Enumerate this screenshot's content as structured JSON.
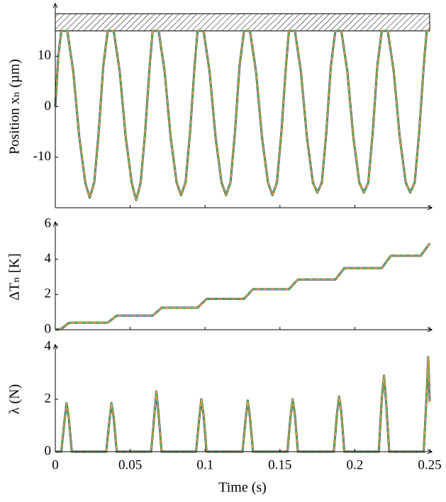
{
  "chart_data": [
    {
      "type": "line",
      "ylabel": "Position xₙ (µm)",
      "x": [
        0,
        0.002,
        0.004,
        0.008,
        0.012,
        0.016,
        0.02,
        0.023,
        0.026,
        0.029,
        0.032,
        0.035,
        0.039,
        0.043,
        0.047,
        0.051,
        0.054,
        0.057,
        0.06,
        0.063,
        0.065,
        0.069,
        0.073,
        0.077,
        0.081,
        0.084,
        0.087,
        0.09,
        0.093,
        0.095,
        0.099,
        0.103,
        0.107,
        0.111,
        0.114,
        0.117,
        0.12,
        0.123,
        0.126,
        0.13,
        0.134,
        0.138,
        0.142,
        0.145,
        0.148,
        0.151,
        0.154,
        0.156,
        0.16,
        0.164,
        0.168,
        0.172,
        0.175,
        0.178,
        0.181,
        0.184,
        0.187,
        0.191,
        0.195,
        0.199,
        0.203,
        0.206,
        0.209,
        0.212,
        0.215,
        0.218,
        0.222,
        0.226,
        0.23,
        0.234,
        0.237,
        0.24,
        0.243,
        0.246,
        0.248,
        0.25
      ],
      "values": [
        0,
        10,
        15,
        15,
        7,
        -6,
        -15,
        -18,
        -15,
        -5,
        8,
        15,
        15,
        7,
        -6,
        -15,
        -18.5,
        -15,
        -5,
        8,
        15,
        15,
        7,
        -6,
        -15,
        -17.5,
        -15,
        -5,
        8,
        15,
        15,
        7,
        -6,
        -15,
        -17.5,
        -15,
        -5,
        8,
        15,
        15,
        7,
        -6,
        -15,
        -17.5,
        -15,
        -5,
        8,
        15,
        15,
        7,
        -6,
        -15,
        -17,
        -15,
        -5,
        8,
        15,
        15,
        7,
        -6,
        -15,
        -17,
        -15,
        -5,
        8,
        15,
        15,
        7,
        -6,
        -15,
        -17,
        -15,
        -5,
        8,
        15,
        15
      ],
      "xlim": [
        0,
        0.25
      ],
      "ylim": [
        -20,
        20
      ],
      "yticks": [
        -10,
        0,
        10
      ],
      "xticks": [
        0,
        0.05,
        0.1,
        0.15,
        0.2,
        0.25
      ],
      "show_xtick_labels": false,
      "obstacle": [
        15,
        18.4
      ],
      "line_colors": [
        "#1b3f6e",
        "#5cb85c",
        "#f0a030"
      ]
    },
    {
      "type": "line",
      "ylabel": "ΔTₙ [K]",
      "x": [
        0,
        0.004,
        0.009,
        0.012,
        0.035,
        0.041,
        0.065,
        0.071,
        0.095,
        0.101,
        0.126,
        0.132,
        0.156,
        0.162,
        0.187,
        0.193,
        0.218,
        0.224,
        0.244,
        0.25
      ],
      "values": [
        0,
        0.05,
        0.38,
        0.4,
        0.4,
        0.8,
        0.8,
        1.25,
        1.25,
        1.75,
        1.75,
        2.3,
        2.3,
        2.85,
        2.85,
        3.5,
        3.5,
        4.2,
        4.2,
        4.9
      ],
      "xlim": [
        0,
        0.25
      ],
      "ylim": [
        0,
        6
      ],
      "yticks": [
        0,
        2,
        4,
        6
      ],
      "xticks": [
        0,
        0.05,
        0.1,
        0.15,
        0.2,
        0.25
      ],
      "show_xtick_labels": false,
      "line_colors": [
        "#1b3f6e",
        "#5cb85c",
        "#f0a030"
      ]
    },
    {
      "type": "line",
      "ylabel": "λ (N)",
      "xlabel": "Time (s)",
      "x": [
        0,
        0.004,
        0.006,
        0.0075,
        0.009,
        0.011,
        0.034,
        0.036,
        0.0375,
        0.039,
        0.041,
        0.064,
        0.066,
        0.0675,
        0.069,
        0.071,
        0.094,
        0.096,
        0.0975,
        0.099,
        0.101,
        0.125,
        0.127,
        0.1285,
        0.13,
        0.132,
        0.155,
        0.157,
        0.1585,
        0.16,
        0.162,
        0.186,
        0.188,
        0.1895,
        0.191,
        0.193,
        0.216,
        0.218,
        0.2195,
        0.221,
        0.223,
        0.246,
        0.248,
        0.249,
        0.25
      ],
      "values": [
        0,
        0,
        1.1,
        1.85,
        1.3,
        0,
        0,
        1.1,
        1.85,
        1.3,
        0,
        0,
        1.3,
        2.3,
        1.4,
        0,
        0,
        1.2,
        2.0,
        1.4,
        0,
        0,
        1.2,
        1.95,
        1.3,
        0,
        0,
        1.3,
        2.0,
        1.4,
        0,
        0,
        1.4,
        2.1,
        1.5,
        0,
        0,
        2.0,
        2.9,
        1.8,
        0,
        0,
        2.2,
        3.6,
        1.9
      ],
      "xlim": [
        0,
        0.25
      ],
      "ylim": [
        0,
        4
      ],
      "yticks": [
        0,
        2,
        4
      ],
      "xticks": [
        0,
        0.05,
        0.1,
        0.15,
        0.2,
        0.25
      ],
      "show_xtick_labels": true,
      "line_colors": [
        "#1b3f6e",
        "#5cb85c",
        "#f0a030"
      ]
    }
  ]
}
